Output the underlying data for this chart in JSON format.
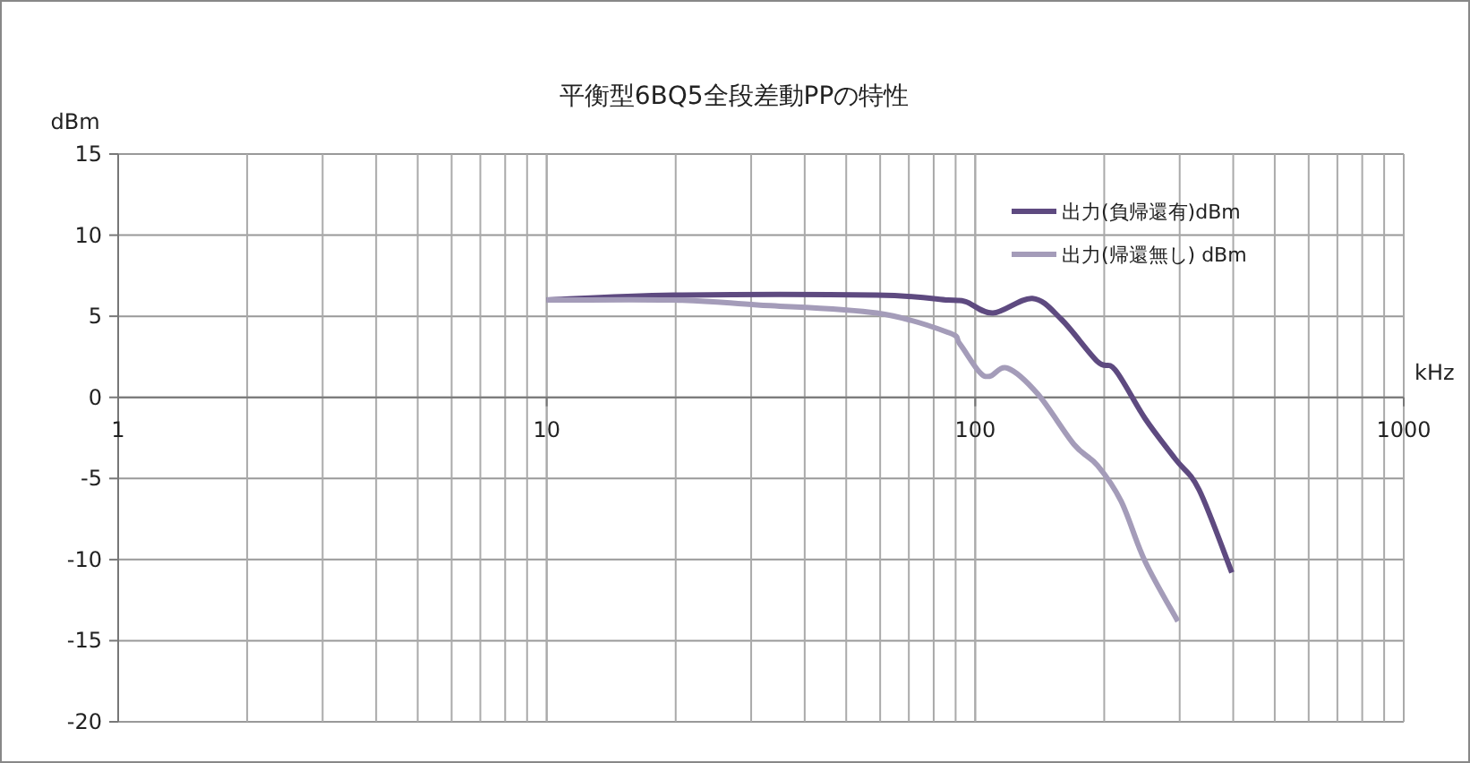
{
  "chart_data": {
    "type": "line",
    "title": "平衡型6BQ5全段差動PPの特性",
    "xlabel": "kHz",
    "ylabel": "dBm",
    "log": "x",
    "grid": true,
    "legend": "top right",
    "xlim": [
      1,
      1000
    ],
    "xticks": [
      1,
      10,
      100,
      1000
    ],
    "ylim": [
      -20,
      15
    ],
    "yticks": [
      -20,
      -15,
      -10,
      -5,
      0,
      5,
      10,
      15
    ],
    "series": [
      {
        "name": "出力(負帰還有)dBm",
        "color": "#5e4a80",
        "x": [
          10,
          19.8,
          58.9,
          86.5,
          95,
          110,
          136,
          159,
          193,
          212,
          249,
          293,
          333,
          397
        ],
        "values": [
          6.0,
          6.3,
          6.3,
          6.0,
          5.9,
          5.2,
          6.1,
          4.8,
          2.2,
          1.7,
          -1.3,
          -3.8,
          -5.7,
          -10.8
        ]
      },
      {
        "name": "出力(帰還無し) dBm",
        "color": "#a49cb9",
        "x": [
          10,
          19.8,
          31,
          58.9,
          86.5,
          92,
          102,
          108,
          119,
          140,
          170,
          193,
          219,
          249,
          297
        ],
        "values": [
          6.0,
          6.0,
          5.7,
          5.2,
          4.0,
          3.3,
          1.6,
          1.3,
          1.8,
          0.2,
          -2.9,
          -4.2,
          -6.4,
          -10.1,
          -13.8
        ]
      }
    ]
  }
}
